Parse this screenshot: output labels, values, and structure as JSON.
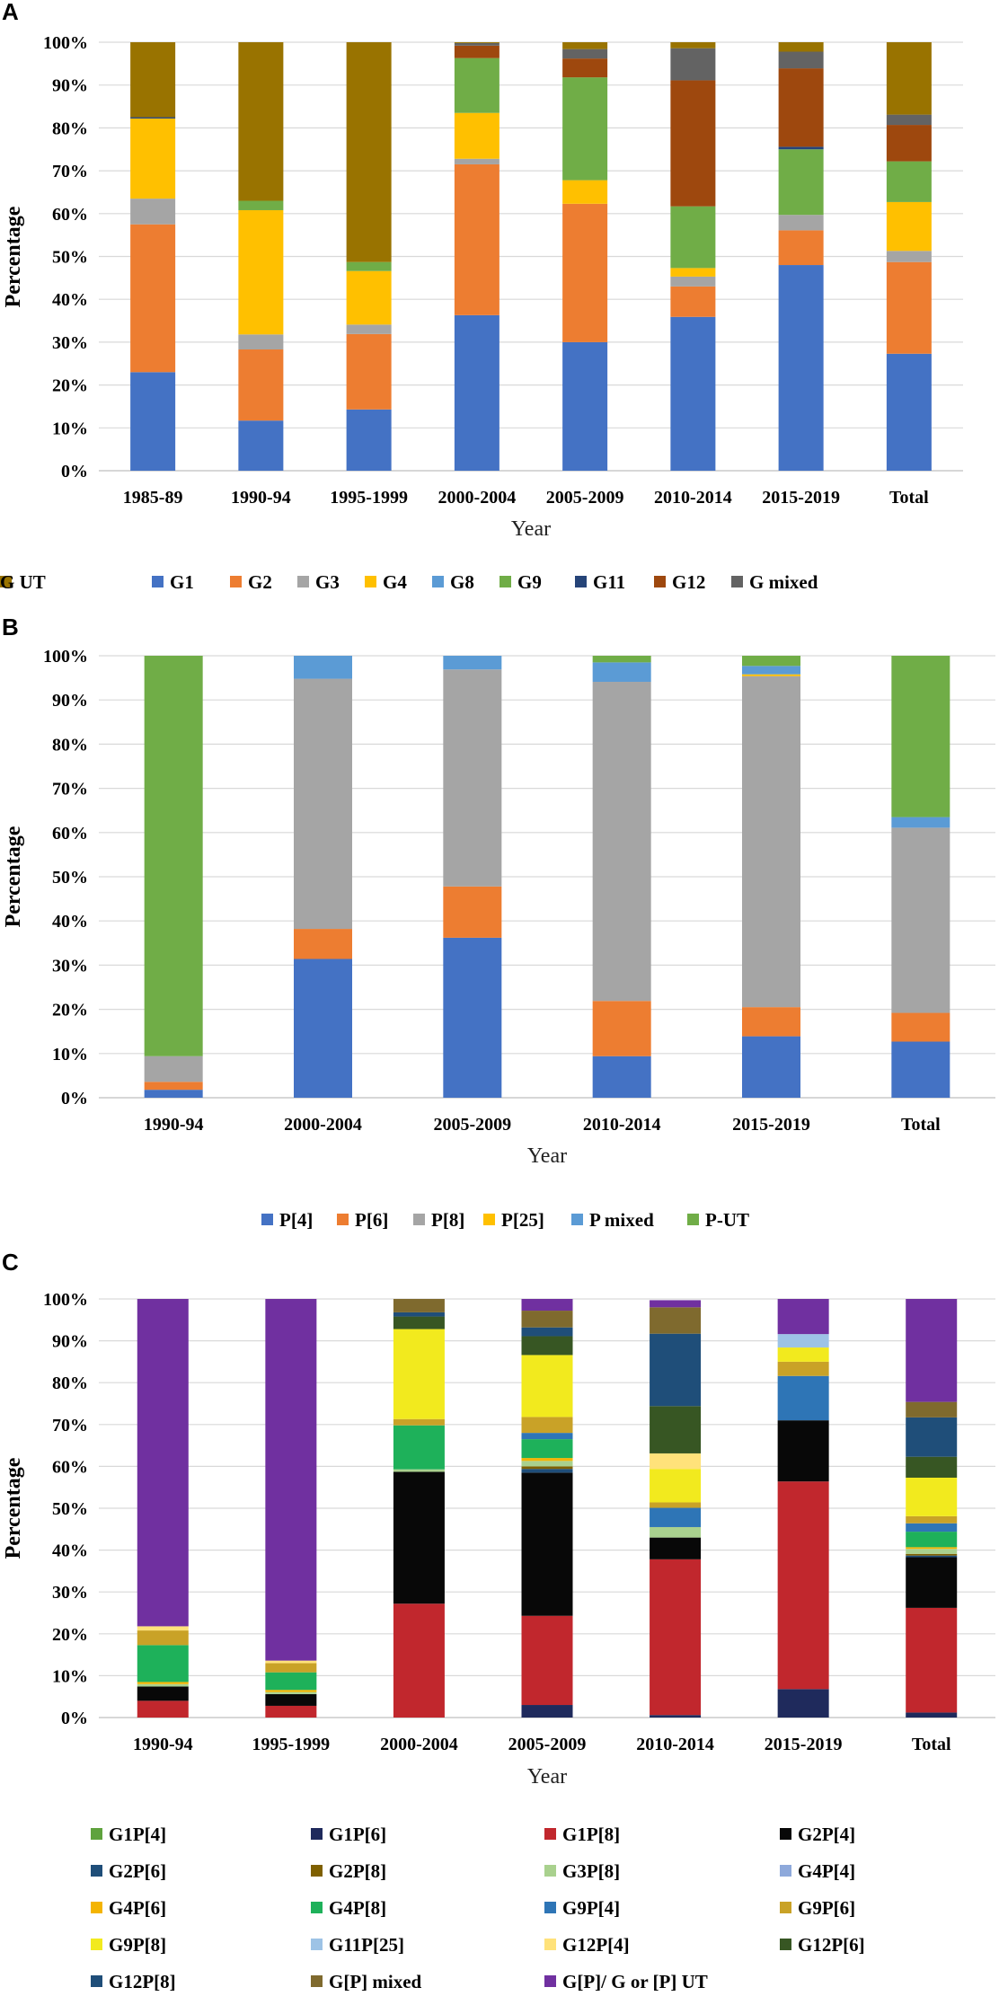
{
  "chart_data": [
    {
      "panel": "A",
      "type": "bar",
      "stacked": true,
      "xlabel": "Year",
      "ylabel": "Percentage",
      "ylim": [
        0,
        100
      ],
      "yticks": [
        "0%",
        "10%",
        "20%",
        "30%",
        "40%",
        "50%",
        "60%",
        "70%",
        "80%",
        "90%",
        "100%"
      ],
      "categories": [
        "1985-89",
        "1990-94",
        "1995-1999",
        "2000-2004",
        "2005-2009",
        "2010-2014",
        "2015-2019",
        "Total"
      ],
      "series": [
        {
          "name": "G1",
          "color": "#4472C4",
          "values": [
            23,
            11.7,
            14.3,
            36.3,
            30,
            35.9,
            48,
            27.3
          ]
        },
        {
          "name": "G2",
          "color": "#ED7D31",
          "values": [
            34.5,
            16.6,
            17.6,
            35.2,
            32.3,
            7.1,
            8.1,
            21.4
          ]
        },
        {
          "name": "G3",
          "color": "#A5A5A5",
          "values": [
            6,
            3.5,
            2.2,
            1.3,
            0,
            2.3,
            3.6,
            2.6
          ]
        },
        {
          "name": "G4",
          "color": "#FFC000",
          "values": [
            18.7,
            29,
            12.5,
            10.7,
            5.5,
            2,
            0,
            11.4
          ]
        },
        {
          "name": "G8",
          "color": "#5B9BD5",
          "values": [
            0,
            0,
            0,
            0,
            0,
            0,
            0,
            0
          ]
        },
        {
          "name": "G9",
          "color": "#70AD47",
          "values": [
            0,
            2.2,
            2.1,
            12.8,
            24,
            14.4,
            15.3,
            9.5
          ]
        },
        {
          "name": "G11",
          "color": "#264478",
          "values": [
            0.3,
            0,
            0,
            0,
            0,
            0,
            0.6,
            0
          ]
        },
        {
          "name": "G12",
          "color": "#9E480E",
          "values": [
            0,
            0,
            0,
            2.9,
            4.4,
            29.4,
            18.3,
            8.5
          ]
        },
        {
          "name": "G mixed",
          "color": "#636363",
          "values": [
            0,
            0,
            0,
            0.6,
            2.2,
            7.5,
            3.9,
            2.4
          ]
        },
        {
          "name": "G UT",
          "color": "#997300",
          "values": [
            17.5,
            37,
            51.3,
            0.2,
            1.6,
            1.4,
            2.2,
            16.9
          ]
        }
      ]
    },
    {
      "panel": "B",
      "type": "bar",
      "stacked": true,
      "xlabel": "Year",
      "ylabel": "Percentage",
      "ylim": [
        0,
        100
      ],
      "yticks": [
        "0%",
        "10%",
        "20%",
        "30%",
        "40%",
        "50%",
        "60%",
        "70%",
        "80%",
        "90%",
        "100%"
      ],
      "categories": [
        "1990-94",
        "2000-2004",
        "2005-2009",
        "2010-2014",
        "2015-2019",
        "Total"
      ],
      "series": [
        {
          "name": "P[4]",
          "color": "#4472C4",
          "values": [
            1.8,
            31.4,
            36.2,
            9.4,
            13.9,
            12.7
          ]
        },
        {
          "name": "P[6]",
          "color": "#ED7D31",
          "values": [
            1.8,
            6.8,
            11.6,
            12.5,
            6.6,
            6.5
          ]
        },
        {
          "name": "P[8]",
          "color": "#A5A5A5",
          "values": [
            5.8,
            56.6,
            49.1,
            72.2,
            74.9,
            41.9
          ]
        },
        {
          "name": "P[25]",
          "color": "#FFC000",
          "values": [
            0,
            0,
            0,
            0,
            0.4,
            0
          ]
        },
        {
          "name": "P mixed",
          "color": "#5B9BD5",
          "values": [
            0,
            5.2,
            3.1,
            4.4,
            1.9,
            2.4
          ]
        },
        {
          "name": "P-UT",
          "color": "#70AD47",
          "values": [
            90.6,
            0,
            0,
            1.5,
            2.3,
            36.5
          ]
        }
      ]
    },
    {
      "panel": "C",
      "type": "bar",
      "stacked": true,
      "xlabel": "Year",
      "ylabel": "Percentage",
      "ylim": [
        0,
        100
      ],
      "yticks": [
        "0%",
        "10%",
        "20%",
        "30%",
        "40%",
        "50%",
        "60%",
        "70%",
        "80%",
        "90%",
        "100%"
      ],
      "categories": [
        "1990-94",
        "1995-1999",
        "2000-2004",
        "2005-2009",
        "2010-2014",
        "2015-2019",
        "Total"
      ],
      "series": [
        {
          "name": "G1P[4]",
          "color": "#5FA23E",
          "values": [
            0,
            0,
            0,
            0,
            0,
            0,
            0
          ]
        },
        {
          "name": "G1P[6]",
          "color": "#1F2A5C",
          "values": [
            0,
            0,
            0,
            3,
            0.6,
            6.8,
            1.2
          ]
        },
        {
          "name": "G1P[8]",
          "color": "#C1272D",
          "values": [
            4,
            2.8,
            27.2,
            21.3,
            37.2,
            49.6,
            25
          ]
        },
        {
          "name": "G2P[4]",
          "color": "#080808",
          "values": [
            3.4,
            2.8,
            31.5,
            34.2,
            5.2,
            14.6,
            12.1
          ]
        },
        {
          "name": "G2P[6]",
          "color": "#1F4E79",
          "values": [
            0,
            0,
            0,
            0.9,
            0,
            0,
            0.4
          ]
        },
        {
          "name": "G2P[8]",
          "color": "#7F6000",
          "values": [
            0,
            0,
            0,
            0.6,
            0,
            0,
            0.4
          ]
        },
        {
          "name": "G3P[8]",
          "color": "#A9D18E",
          "values": [
            0.6,
            0.5,
            0.6,
            1.3,
            2.5,
            0,
            1.2
          ]
        },
        {
          "name": "G4P[4]",
          "color": "#8EA9DB",
          "values": [
            0,
            0,
            0,
            0,
            0,
            0,
            0
          ]
        },
        {
          "name": "G4P[6]",
          "color": "#F4B400",
          "values": [
            0.5,
            0.5,
            0,
            0.7,
            0,
            0,
            0.4
          ]
        },
        {
          "name": "G4P[8]",
          "color": "#1EB15A",
          "values": [
            8.8,
            4.2,
            10.5,
            4.5,
            0,
            0,
            3.7
          ]
        },
        {
          "name": "G9P[4]",
          "color": "#2E75B6",
          "values": [
            0,
            0,
            0,
            1.5,
            4.6,
            10.6,
            2
          ]
        },
        {
          "name": "G9P[6]",
          "color": "#C9A227",
          "values": [
            3.5,
            2.2,
            1.5,
            3.8,
            1.3,
            3.4,
            1.7
          ]
        },
        {
          "name": "G9P[8]",
          "color": "#F2EA1E",
          "values": [
            0,
            0,
            21.5,
            14.8,
            8,
            3.4,
            9.2
          ]
        },
        {
          "name": "G11P[25]",
          "color": "#9DC3E6",
          "values": [
            0,
            0,
            0,
            0,
            0,
            3.2,
            0
          ]
        },
        {
          "name": "G12P[4]",
          "color": "#FFE27A",
          "values": [
            1,
            0.6,
            0,
            0,
            3.7,
            0,
            0
          ]
        },
        {
          "name": "G12P[6]",
          "color": "#375623",
          "values": [
            0,
            0,
            3,
            4.5,
            11.3,
            0,
            5
          ]
        },
        {
          "name": "G12P[8]",
          "color": "#1F4E79",
          "values": [
            0,
            0,
            1,
            2.1,
            17.3,
            0,
            9.4
          ]
        },
        {
          "name": "G[P] mixed",
          "color": "#7F6A2E",
          "values": [
            0,
            0,
            3.2,
            4,
            6.3,
            0,
            3.7
          ]
        },
        {
          "name": "G[P]/ G or [P] UT",
          "color": "#7030A0",
          "values": [
            78.2,
            86.4,
            0,
            2.8,
            1.7,
            8.4,
            24.6
          ]
        }
      ]
    }
  ]
}
